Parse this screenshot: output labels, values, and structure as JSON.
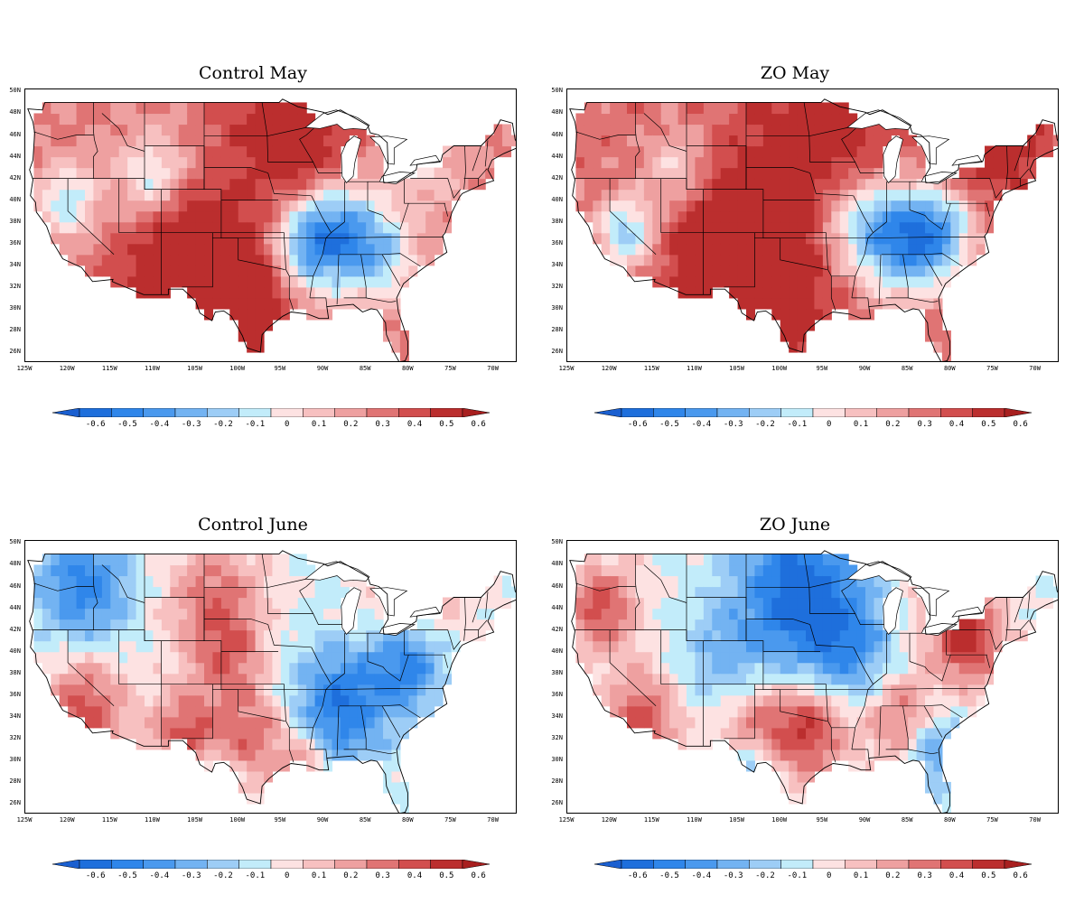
{
  "panels": [
    {
      "title": "Control May",
      "pattern": "control_may"
    },
    {
      "title": "ZO May",
      "pattern": "zo_may"
    },
    {
      "title": "Control June",
      "pattern": "control_june"
    },
    {
      "title": "ZO June",
      "pattern": "zo_june"
    }
  ],
  "lat_labels": [
    "50N",
    "48N",
    "46N",
    "44N",
    "42N",
    "40N",
    "38N",
    "36N",
    "34N",
    "32N",
    "30N",
    "28N",
    "26N"
  ],
  "lon_labels": [
    "125W",
    "120W",
    "115W",
    "110W",
    "105W",
    "100W",
    "95W",
    "90W",
    "85W",
    "80W",
    "75W",
    "70W"
  ],
  "colorbar": {
    "labels": [
      "-0.6",
      "-0.5",
      "-0.4",
      "-0.3",
      "-0.2",
      "-0.1",
      "0",
      "0.1",
      "0.2",
      "0.3",
      "0.4",
      "0.5",
      "0.6"
    ],
    "colors": [
      "#1e6fdc",
      "#2f86ea",
      "#4a99ee",
      "#73b3f2",
      "#9dcdf6",
      "#c2ecfa",
      "#fde2e2",
      "#f7c0c0",
      "#eea0a0",
      "#e07474",
      "#d24e4e",
      "#bb2e2e"
    ]
  }
}
